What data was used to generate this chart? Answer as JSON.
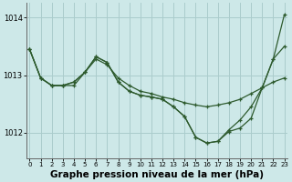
{
  "bg_color": "#cde8e8",
  "grid_color": "#aacccc",
  "line_color": "#2d5a2d",
  "xlabel": "Graphe pression niveau de la mer (hPa)",
  "xlabel_fontsize": 7.5,
  "xlim": [
    -0.3,
    23.3
  ],
  "ylim": [
    1011.55,
    1014.25
  ],
  "yticks": [
    1012,
    1013,
    1014
  ],
  "xticks": [
    0,
    1,
    2,
    3,
    4,
    5,
    6,
    7,
    8,
    9,
    10,
    11,
    12,
    13,
    14,
    15,
    16,
    17,
    18,
    19,
    20,
    21,
    22,
    23
  ],
  "series": [
    [
      1013.45,
      1012.95,
      1012.82,
      1012.82,
      1012.82,
      1013.05,
      1013.28,
      1013.18,
      1012.95,
      1012.82,
      1012.72,
      1012.68,
      1012.62,
      1012.58,
      1012.52,
      1012.48,
      1012.45,
      1012.48,
      1012.52,
      1012.58,
      1012.68,
      1012.78,
      1012.88,
      1012.95
    ],
    [
      1013.45,
      1012.95,
      1012.82,
      1012.82,
      1012.88,
      1013.05,
      1013.32,
      1013.22,
      1012.88,
      1012.72,
      1012.65,
      1012.62,
      1012.58,
      1012.45,
      1012.28,
      1011.92,
      1011.82,
      1011.85,
      1012.02,
      1012.08,
      1012.25,
      1012.78,
      1013.28,
      1013.5
    ],
    [
      1013.45,
      1012.95,
      1012.82,
      1012.82,
      1012.88,
      1013.05,
      1013.32,
      1013.22,
      1012.88,
      1012.72,
      1012.65,
      1012.62,
      1012.58,
      1012.45,
      1012.28,
      1011.92,
      1011.82,
      1011.85,
      1012.05,
      1012.22,
      1012.45,
      1012.78,
      1013.28,
      1014.05
    ]
  ]
}
